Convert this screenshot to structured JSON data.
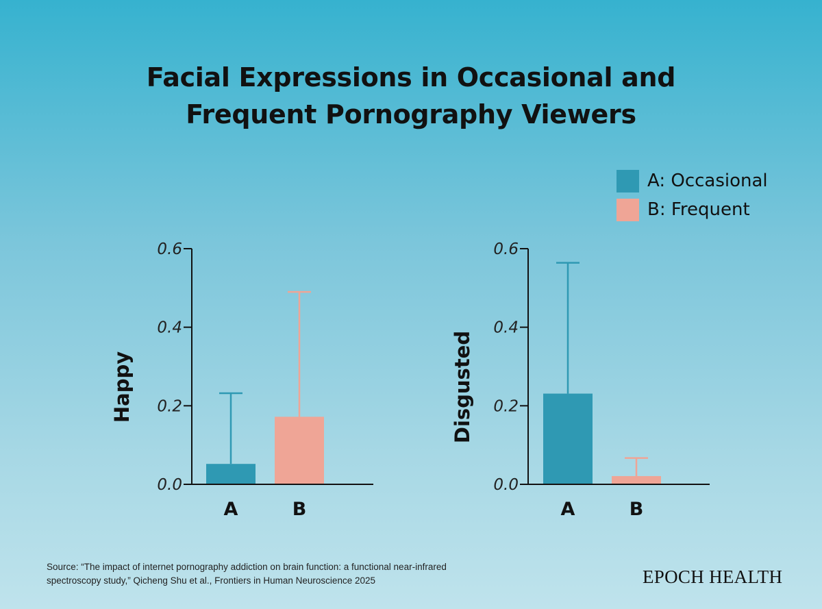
{
  "title": {
    "line1": "Facial Expressions in Occasional and",
    "line2": "Frequent Pornography Viewers"
  },
  "legend": [
    {
      "label": "A: Occasional",
      "color": "#2f99b3"
    },
    {
      "label": "B: Frequent",
      "color": "#efa596"
    }
  ],
  "chart_data": [
    {
      "type": "bar",
      "ylabel": "Happy",
      "categories": [
        "A",
        "B"
      ],
      "values": [
        0.052,
        0.172
      ],
      "error_upper": [
        0.232,
        0.49
      ],
      "colors": [
        "#2f99b3",
        "#efa596"
      ],
      "ylim": [
        0,
        0.6
      ],
      "yticks": [
        "0.0",
        "0.2",
        "0.4",
        "0.6"
      ]
    },
    {
      "type": "bar",
      "ylabel": "Disgusted",
      "categories": [
        "A",
        "B"
      ],
      "values": [
        0.231,
        0.021
      ],
      "error_upper": [
        0.564,
        0.067
      ],
      "colors": [
        "#2f99b3",
        "#efa596"
      ],
      "ylim": [
        0,
        0.6
      ],
      "yticks": [
        "0.0",
        "0.2",
        "0.4",
        "0.6"
      ]
    }
  ],
  "source": {
    "line1": "Source: “The impact of internet pornography addiction on brain function: a functional near-infrared",
    "line2": "spectroscopy study,” Qicheng Shu et al., Frontiers in Human Neuroscience 2025"
  },
  "logo": "EPOCH HEALTH"
}
